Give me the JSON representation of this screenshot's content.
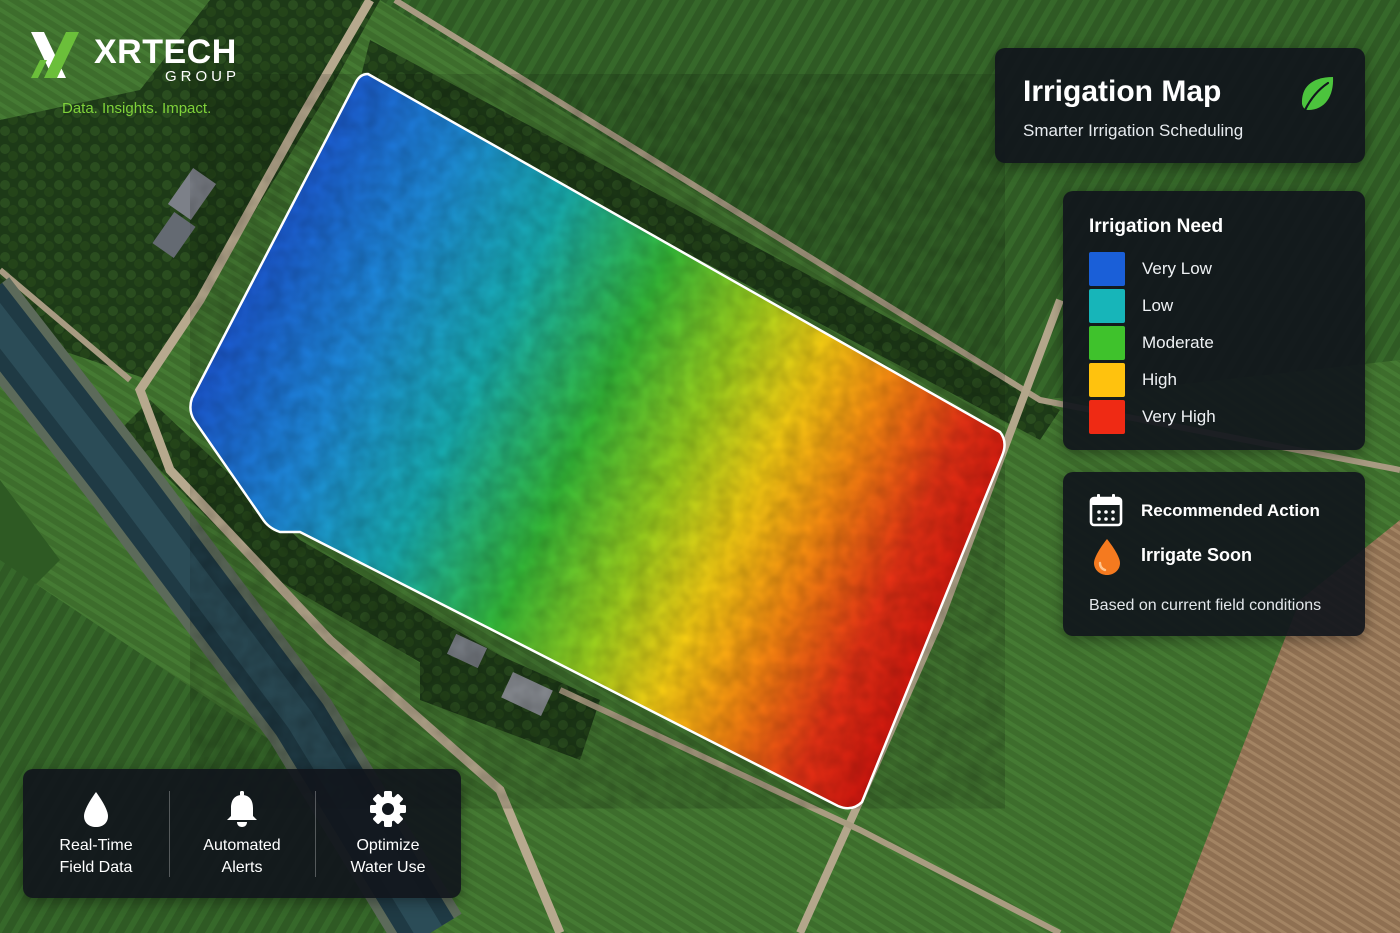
{
  "brand": {
    "name": "XRTECH",
    "sub": "GROUP",
    "tagline": "Data. Insights. Impact.",
    "colors": {
      "mark_green": "#6bbf3a",
      "mark_white": "#ffffff",
      "tagline": "#7fd23a"
    }
  },
  "header": {
    "title": "Irrigation Map",
    "subtitle": "Smarter Irrigation Scheduling",
    "icon": "leaf-icon",
    "icon_color": "#4cc43d"
  },
  "legend": {
    "title": "Irrigation Need",
    "items": [
      {
        "label": "Very Low",
        "color": "#1a5fd8"
      },
      {
        "label": "Low",
        "color": "#17b5b9"
      },
      {
        "label": "Moderate",
        "color": "#3fc22c"
      },
      {
        "label": "High",
        "color": "#ffc20e"
      },
      {
        "label": "Very High",
        "color": "#ef2a14"
      }
    ]
  },
  "recommendation": {
    "icon": "calendar-icon",
    "title": "Recommended Action",
    "value_icon": "water-drop-icon",
    "value_icon_color": "#f57a1f",
    "value": "Irrigate Soon",
    "note": "Based on current field conditions"
  },
  "features": [
    {
      "icon": "water-drop-icon",
      "line1": "Real-Time",
      "line2": "Field Data"
    },
    {
      "icon": "bell-icon",
      "line1": "Automated",
      "line2": "Alerts"
    },
    {
      "icon": "gear-icon",
      "line1": "Optimize",
      "line2": "Water Use"
    }
  ]
}
